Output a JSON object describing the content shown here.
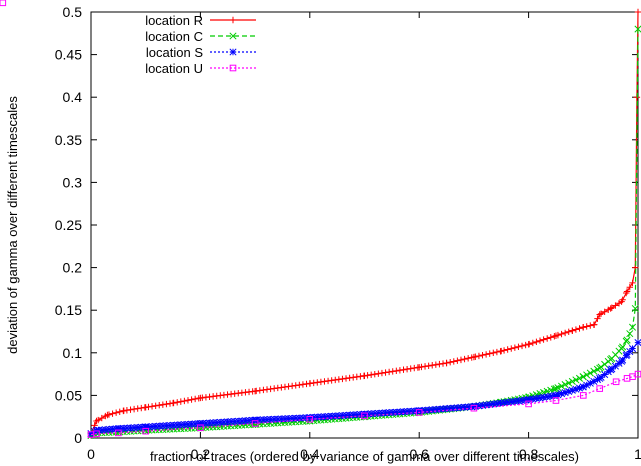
{
  "chart_data": {
    "type": "line",
    "title": "",
    "xlabel": "fraction of traces (ordered by variance of gamma over different timescales)",
    "ylabel": "deviation of gamma over different timescales",
    "xlim": [
      0,
      1
    ],
    "ylim": [
      0,
      0.5
    ],
    "x_ticks": [
      "0",
      "0.2",
      "0.4",
      "0.6",
      "0.8",
      "1"
    ],
    "y_ticks": [
      "0",
      "0.05",
      "0.1",
      "0.15",
      "0.2",
      "0.25",
      "0.3",
      "0.35",
      "0.4",
      "0.45",
      "0.5"
    ],
    "grid": false,
    "legend_position": "top-left",
    "series": [
      {
        "name": "location R",
        "color": "#ff0000",
        "marker": "plus",
        "line_style": "solid",
        "x": [
          0,
          0.01,
          0.03,
          0.06,
          0.1,
          0.15,
          0.2,
          0.3,
          0.4,
          0.5,
          0.6,
          0.65,
          0.7,
          0.75,
          0.8,
          0.85,
          0.88,
          0.9,
          0.92,
          0.93,
          0.95,
          0.97,
          0.98,
          0.99,
          0.995,
          0.998,
          1.0
        ],
        "y": [
          0.005,
          0.02,
          0.027,
          0.032,
          0.036,
          0.041,
          0.047,
          0.055,
          0.064,
          0.073,
          0.083,
          0.088,
          0.095,
          0.102,
          0.11,
          0.12,
          0.126,
          0.13,
          0.133,
          0.145,
          0.152,
          0.16,
          0.172,
          0.182,
          0.2,
          0.4,
          0.5
        ]
      },
      {
        "name": "location C",
        "color": "#00cc00",
        "marker": "cross",
        "line_style": "dashed",
        "x": [
          0,
          0.01,
          0.05,
          0.1,
          0.2,
          0.3,
          0.4,
          0.5,
          0.6,
          0.7,
          0.75,
          0.8,
          0.85,
          0.9,
          0.93,
          0.95,
          0.97,
          0.98,
          0.99,
          0.995,
          1.0
        ],
        "y": [
          0.003,
          0.006,
          0.007,
          0.009,
          0.012,
          0.016,
          0.02,
          0.025,
          0.03,
          0.037,
          0.042,
          0.048,
          0.058,
          0.072,
          0.082,
          0.092,
          0.105,
          0.115,
          0.13,
          0.152,
          0.48
        ]
      },
      {
        "name": "location S",
        "color": "#0000ff",
        "marker": "star",
        "line_style": "dotted",
        "x": [
          0,
          0.01,
          0.05,
          0.1,
          0.2,
          0.3,
          0.4,
          0.5,
          0.6,
          0.7,
          0.8,
          0.85,
          0.9,
          0.93,
          0.95,
          0.97,
          0.98,
          0.99,
          1.0
        ],
        "y": [
          0.005,
          0.009,
          0.011,
          0.013,
          0.017,
          0.021,
          0.024,
          0.028,
          0.032,
          0.037,
          0.045,
          0.05,
          0.06,
          0.07,
          0.08,
          0.09,
          0.098,
          0.105,
          0.112
        ]
      },
      {
        "name": "location U",
        "color": "#ff00ff",
        "marker": "square",
        "line_style": "dotted",
        "x": [
          0,
          0.01,
          0.05,
          0.1,
          0.2,
          0.3,
          0.4,
          0.5,
          0.6,
          0.7,
          0.8,
          0.85,
          0.9,
          0.93,
          0.96,
          0.98,
          0.99,
          1.0
        ],
        "y": [
          0.004,
          0.005,
          0.006,
          0.008,
          0.012,
          0.017,
          0.022,
          0.026,
          0.03,
          0.035,
          0.04,
          0.044,
          0.05,
          0.058,
          0.066,
          0.07,
          0.072,
          0.075
        ]
      }
    ]
  }
}
